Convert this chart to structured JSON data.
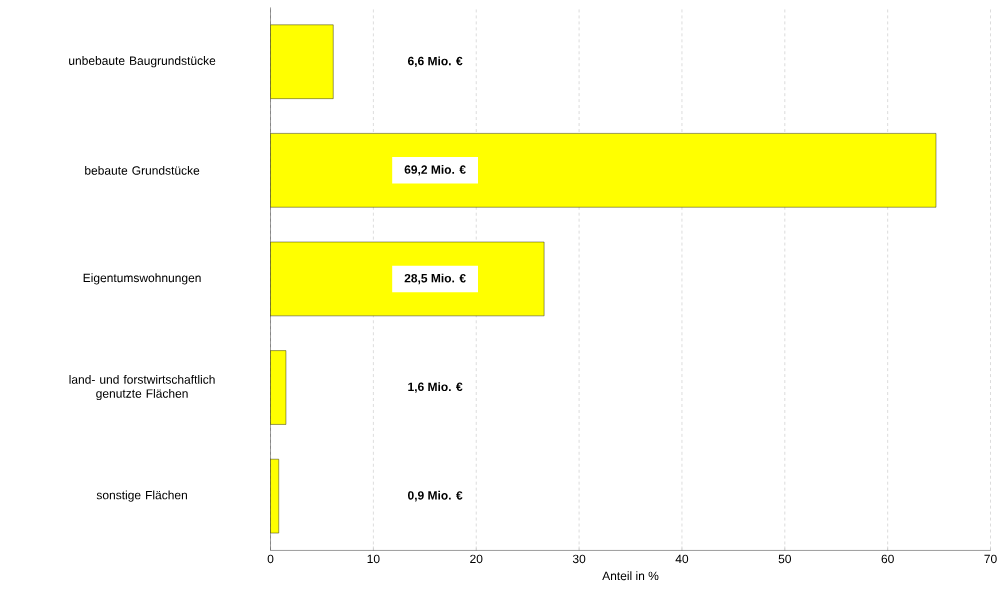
{
  "chart_data": {
    "type": "bar",
    "orientation": "horizontal",
    "categories": [
      "unbebaute Baugrundstücke",
      "bebaute Grundstücke",
      "Eigentumswohnungen",
      "land- und forstwirtschaftlich genutzte Flächen",
      "sonstige Flächen"
    ],
    "values": [
      6.1,
      64.7,
      26.6,
      1.5,
      0.8
    ],
    "annotations": [
      "6,6 Mio. €",
      "69,2 Mio. €",
      "28,5 Mio. €",
      "1,6 Mio. €",
      "0,9 Mio. €"
    ],
    "color": "#ffff00",
    "xlabel": "Anteil in %",
    "xlim": [
      0,
      70
    ],
    "xticks": [
      0,
      10,
      20,
      30,
      40,
      50,
      60,
      70
    ],
    "grid": "x"
  }
}
